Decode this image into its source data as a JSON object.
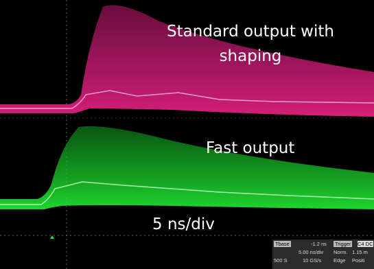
{
  "annotations": {
    "standard": [
      "Standard output with",
      "shaping"
    ],
    "fast": "Fast output",
    "timebase": "5 ns/div"
  },
  "info_panel": {
    "timebase": {
      "label": "Tbase",
      "offset": "-1.2 ns",
      "scale": "5.00 ns/div",
      "samples": "500 S",
      "rate": "10 GS/s"
    },
    "trigger": {
      "label": "Trigger",
      "channel": "C4 DC",
      "mode": "Norm.",
      "level": "1.15 m",
      "type": "Edge",
      "slope": "Positi"
    }
  }
}
